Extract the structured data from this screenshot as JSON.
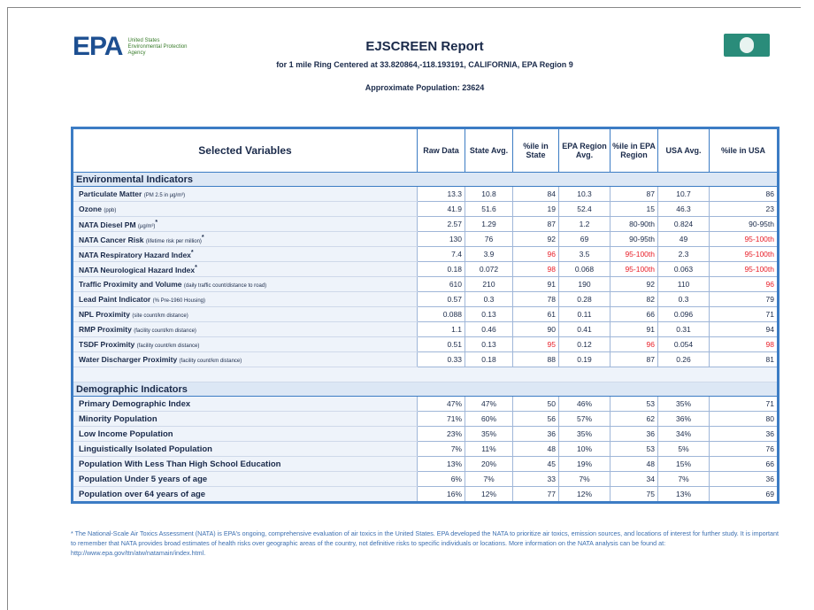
{
  "header": {
    "agency": "EPA",
    "agency_full": [
      "United States",
      "Environmental Protection",
      "Agency"
    ],
    "title": "EJSCREEN Report",
    "subtitle": "for 1 mile Ring Centered at 33.820864,-118.193191, CALIFORNIA, EPA Region 9",
    "population": "Approximate Population: 23624"
  },
  "table": {
    "columns": [
      "Selected Variables",
      "Raw Data",
      "State Avg.",
      "%ile in State",
      "EPA Region Avg.",
      "%ile in EPA Region",
      "USA Avg.",
      "%ile in USA"
    ],
    "highlight_color": "#e8202a",
    "sections": [
      {
        "title": "Environmental Indicators",
        "rows": [
          {
            "name": "Particulate Matter",
            "unit": "(PM 2.5 in µg/m³)",
            "cells": [
              "13.3",
              "10.8",
              "84",
              "10.3",
              "87",
              "10.7",
              "86"
            ],
            "red": []
          },
          {
            "name": "Ozone",
            "unit": "(ppb)",
            "cells": [
              "41.9",
              "51.6",
              "19",
              "52.4",
              "15",
              "46.3",
              "23"
            ],
            "red": []
          },
          {
            "name": "NATA Diesel PM",
            "unit": "(µg/m³)",
            "mark": "*",
            "cells": [
              "2.57",
              "1.29",
              "87",
              "1.2",
              "80-90th",
              "0.824",
              "90-95th"
            ],
            "red": []
          },
          {
            "name": "NATA Cancer Risk",
            "unit": "(lifetime risk per million)",
            "mark": "*",
            "cells": [
              "130",
              "76",
              "92",
              "69",
              "90-95th",
              "49",
              "95-100th"
            ],
            "red": [
              6
            ]
          },
          {
            "name": "NATA Respiratory Hazard Index",
            "mark": "*",
            "cells": [
              "7.4",
              "3.9",
              "96",
              "3.5",
              "95-100th",
              "2.3",
              "95-100th"
            ],
            "red": [
              2,
              4,
              6
            ]
          },
          {
            "name": "NATA Neurological Hazard Index",
            "mark": "*",
            "cells": [
              "0.18",
              "0.072",
              "98",
              "0.068",
              "95-100th",
              "0.063",
              "95-100th"
            ],
            "red": [
              2,
              4,
              6
            ]
          },
          {
            "name": "Traffic Proximity and Volume",
            "unit": "(daily traffic count/distance to road)",
            "cells": [
              "610",
              "210",
              "91",
              "190",
              "92",
              "110",
              "96"
            ],
            "red": [
              6
            ]
          },
          {
            "name": "Lead Paint Indicator",
            "unit": "(% Pre-1960 Housing)",
            "cells": [
              "0.57",
              "0.3",
              "78",
              "0.28",
              "82",
              "0.3",
              "79"
            ],
            "red": []
          },
          {
            "name": "NPL Proximity",
            "unit": "(site count/km distance)",
            "cells": [
              "0.088",
              "0.13",
              "61",
              "0.11",
              "66",
              "0.096",
              "71"
            ],
            "red": []
          },
          {
            "name": "RMP Proximity",
            "unit": "(facility count/km distance)",
            "cells": [
              "1.1",
              "0.46",
              "90",
              "0.41",
              "91",
              "0.31",
              "94"
            ],
            "red": []
          },
          {
            "name": "TSDF Proximity",
            "unit": "(facility count/km distance)",
            "cells": [
              "0.51",
              "0.13",
              "95",
              "0.12",
              "96",
              "0.054",
              "98"
            ],
            "red": [
              2,
              4,
              6
            ]
          },
          {
            "name": "Water Discharger Proximity",
            "unit": "(facility count/km distance)",
            "cells": [
              "0.33",
              "0.18",
              "88",
              "0.19",
              "87",
              "0.26",
              "81"
            ],
            "red": []
          }
        ]
      },
      {
        "title": "Demographic Indicators",
        "rows": [
          {
            "name": "Primary Demographic Index",
            "cells": [
              "47%",
              "47%",
              "50",
              "46%",
              "53",
              "35%",
              "71"
            ],
            "red": []
          },
          {
            "name": "Minority Population",
            "cells": [
              "71%",
              "60%",
              "56",
              "57%",
              "62",
              "36%",
              "80"
            ],
            "red": []
          },
          {
            "name": "Low Income Population",
            "cells": [
              "23%",
              "35%",
              "36",
              "35%",
              "36",
              "34%",
              "36"
            ],
            "red": []
          },
          {
            "name": "Linguistically Isolated Population",
            "cells": [
              "7%",
              "11%",
              "48",
              "10%",
              "53",
              "5%",
              "76"
            ],
            "red": []
          },
          {
            "name": "Population With Less Than High School Education",
            "cells": [
              "13%",
              "20%",
              "45",
              "19%",
              "48",
              "15%",
              "66"
            ],
            "red": []
          },
          {
            "name": "Population Under 5 years of age",
            "cells": [
              "6%",
              "7%",
              "33",
              "7%",
              "34",
              "7%",
              "36"
            ],
            "red": []
          },
          {
            "name": "Population over 64 years of age",
            "cells": [
              "16%",
              "12%",
              "77",
              "12%",
              "75",
              "13%",
              "69"
            ],
            "red": []
          }
        ]
      }
    ]
  },
  "footnote": "* The National-Scale Air Toxics Assessment (NATA) is EPA's ongoing, comprehensive evaluation of air toxics in the United States. EPA developed the NATA to prioritize air toxics, emission sources, and locations of interest for further study. It is important to remember that NATA provides broad estimates of health risks over geographic areas of the country, not definitive risks to specific individuals or locations. More information on the NATA analysis can be found at: http://www.epa.gov/ttn/atw/natamain/index.html."
}
